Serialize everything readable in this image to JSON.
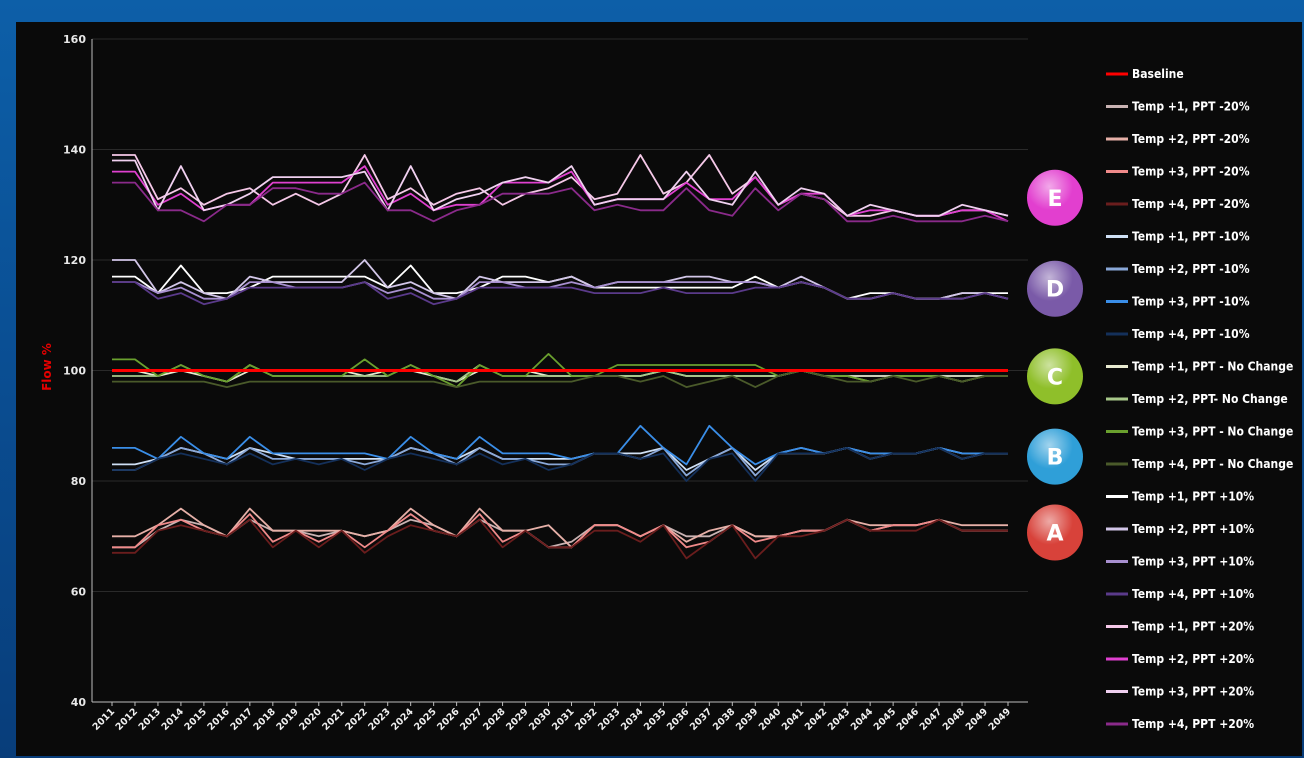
{
  "chart_data": {
    "type": "line",
    "title": "",
    "ylabel": "Flow %",
    "xlabel": "",
    "ylim": [
      40,
      160
    ],
    "yticks": [
      40,
      60,
      80,
      100,
      120,
      140,
      160
    ],
    "grid": "horizontal",
    "legend_position": "right",
    "x": [
      "2011",
      "2012",
      "2013",
      "2014",
      "2015",
      "2016",
      "2017",
      "2018",
      "2019",
      "2020",
      "2021",
      "2022",
      "2023",
      "2024",
      "2025",
      "2026",
      "2027",
      "2028",
      "2029",
      "2030",
      "2031",
      "2032",
      "2033",
      "2034",
      "2035",
      "2036",
      "2037",
      "2038",
      "2039",
      "2040",
      "2041",
      "2042",
      "2043",
      "2044",
      "2045",
      "2046",
      "2047",
      "2048",
      "2049",
      "2049"
    ],
    "groups": [
      {
        "label": "E",
        "color": "#e23fcf"
      },
      {
        "label": "D",
        "color": "#7a5aa8"
      },
      {
        "label": "C",
        "color": "#8fbf2a"
      },
      {
        "label": "B",
        "color": "#2f9fd8"
      },
      {
        "label": "A",
        "color": "#d8423a"
      }
    ],
    "series": [
      {
        "name": "Baseline",
        "color": "#ff0000",
        "group": "",
        "values": [
          100,
          100,
          100,
          100,
          100,
          100,
          100,
          100,
          100,
          100,
          100,
          100,
          100,
          100,
          100,
          100,
          100,
          100,
          100,
          100,
          100,
          100,
          100,
          100,
          100,
          100,
          100,
          100,
          100,
          100,
          100,
          100,
          100,
          100,
          100,
          100,
          100,
          100,
          100,
          100
        ]
      },
      {
        "name": "Temp +1, PPT -20%",
        "color": "#c9b3b3",
        "group": "A",
        "values": [
          68,
          68,
          71,
          73,
          72,
          70,
          73,
          71,
          71,
          70,
          71,
          70,
          71,
          73,
          72,
          70,
          73,
          71,
          71,
          68,
          69,
          72,
          72,
          70,
          72,
          70,
          70,
          72,
          70,
          70,
          71,
          71,
          73,
          71,
          72,
          72,
          73,
          71,
          71,
          71
        ]
      },
      {
        "name": "Temp +2, PPT -20%",
        "color": "#e6b0a8",
        "group": "A",
        "values": [
          70,
          70,
          72,
          75,
          72,
          70,
          75,
          71,
          71,
          71,
          71,
          70,
          71,
          75,
          72,
          70,
          75,
          71,
          71,
          72,
          68,
          72,
          72,
          70,
          72,
          69,
          71,
          72,
          70,
          70,
          71,
          71,
          73,
          72,
          72,
          72,
          73,
          72,
          72,
          72
        ]
      },
      {
        "name": "Temp +3, PPT -20%",
        "color": "#f08a8a",
        "group": "A",
        "values": [
          68,
          68,
          72,
          73,
          71,
          70,
          74,
          69,
          71,
          69,
          71,
          68,
          71,
          74,
          71,
          70,
          74,
          69,
          71,
          68,
          68,
          72,
          72,
          70,
          72,
          68,
          69,
          72,
          69,
          70,
          71,
          71,
          73,
          71,
          72,
          72,
          73,
          71,
          71,
          71
        ]
      },
      {
        "name": "Temp +4, PPT -20%",
        "color": "#6a1d1d",
        "group": "A",
        "values": [
          67,
          67,
          71,
          72,
          71,
          70,
          73,
          68,
          71,
          68,
          71,
          67,
          70,
          72,
          71,
          70,
          73,
          68,
          71,
          68,
          68,
          71,
          71,
          69,
          72,
          66,
          69,
          72,
          66,
          70,
          70,
          71,
          73,
          71,
          71,
          71,
          73,
          71,
          71,
          71
        ]
      },
      {
        "name": "Temp +1, PPT -10%",
        "color": "#cfe0f5",
        "group": "B",
        "values": [
          83,
          83,
          84,
          86,
          85,
          84,
          86,
          85,
          84,
          84,
          84,
          84,
          84,
          86,
          85,
          84,
          86,
          84,
          84,
          84,
          84,
          85,
          85,
          85,
          86,
          82,
          84,
          86,
          82,
          85,
          85,
          85,
          86,
          85,
          85,
          85,
          86,
          85,
          85,
          85
        ]
      },
      {
        "name": "Temp +2, PPT -10%",
        "color": "#8aa8d8",
        "group": "B",
        "values": [
          82,
          82,
          84,
          86,
          85,
          83,
          86,
          84,
          84,
          84,
          84,
          83,
          84,
          86,
          85,
          83,
          86,
          84,
          84,
          83,
          83,
          85,
          85,
          84,
          86,
          81,
          84,
          86,
          81,
          85,
          86,
          85,
          86,
          84,
          85,
          85,
          86,
          84,
          85,
          85
        ]
      },
      {
        "name": "Temp +3, PPT -10%",
        "color": "#3a8ee8",
        "group": "B",
        "values": [
          86,
          86,
          84,
          88,
          85,
          84,
          88,
          85,
          85,
          85,
          85,
          85,
          84,
          88,
          85,
          84,
          88,
          85,
          85,
          85,
          84,
          85,
          85,
          90,
          86,
          83,
          90,
          86,
          83,
          85,
          86,
          85,
          86,
          85,
          85,
          85,
          86,
          85,
          85,
          85
        ]
      },
      {
        "name": "Temp +4, PPT -10%",
        "color": "#14305a",
        "group": "B",
        "values": [
          82,
          82,
          84,
          85,
          84,
          83,
          85,
          83,
          84,
          83,
          84,
          82,
          84,
          85,
          84,
          83,
          85,
          83,
          84,
          82,
          83,
          85,
          85,
          84,
          85,
          80,
          84,
          85,
          80,
          85,
          85,
          85,
          86,
          84,
          85,
          85,
          86,
          84,
          85,
          85
        ]
      },
      {
        "name": "Temp +1, PPT - No Change",
        "color": "#e8ead0",
        "group": "C",
        "values": [
          100,
          100,
          99,
          100,
          99,
          98,
          100,
          100,
          100,
          100,
          100,
          99,
          100,
          100,
          99,
          98,
          100,
          100,
          100,
          99,
          99,
          99,
          99,
          99,
          100,
          99,
          99,
          99,
          99,
          99,
          100,
          99,
          99,
          99,
          99,
          99,
          99,
          99,
          99,
          99
        ]
      },
      {
        "name": "Temp +2, PPT- No Change",
        "color": "#a8c88a",
        "group": "C",
        "values": [
          99,
          99,
          99,
          101,
          99,
          98,
          101,
          99,
          99,
          99,
          99,
          99,
          99,
          101,
          99,
          98,
          101,
          99,
          99,
          99,
          99,
          99,
          99,
          99,
          100,
          99,
          99,
          99,
          99,
          99,
          100,
          99,
          99,
          98,
          99,
          99,
          99,
          98,
          99,
          99
        ]
      },
      {
        "name": "Temp +3, PPT - No Change",
        "color": "#6aa02e",
        "group": "C",
        "values": [
          102,
          102,
          99,
          101,
          99,
          98,
          101,
          99,
          99,
          99,
          99,
          102,
          99,
          101,
          99,
          97,
          101,
          99,
          99,
          103,
          99,
          99,
          101,
          101,
          101,
          101,
          101,
          101,
          101,
          99,
          100,
          99,
          99,
          98,
          99,
          99,
          99,
          98,
          99,
          99
        ]
      },
      {
        "name": "Temp +4, PPT - No Change",
        "color": "#4a5a2a",
        "group": "C",
        "values": [
          98,
          98,
          98,
          98,
          98,
          97,
          98,
          98,
          98,
          98,
          98,
          98,
          98,
          98,
          98,
          97,
          98,
          98,
          98,
          98,
          98,
          99,
          99,
          98,
          99,
          97,
          98,
          99,
          97,
          99,
          100,
          99,
          98,
          98,
          99,
          98,
          99,
          98,
          99,
          99
        ]
      },
      {
        "name": "Temp +1, PPT +10%",
        "color": "#ffffff",
        "group": "D",
        "values": [
          117,
          117,
          114,
          119,
          114,
          114,
          115,
          117,
          117,
          117,
          117,
          117,
          115,
          119,
          114,
          114,
          115,
          117,
          117,
          116,
          117,
          115,
          115,
          115,
          115,
          115,
          115,
          115,
          117,
          115,
          116,
          115,
          113,
          114,
          114,
          113,
          113,
          114,
          114,
          114
        ]
      },
      {
        "name": "Temp +2, PPT +10%",
        "color": "#d2c6e8",
        "group": "D",
        "values": [
          120,
          120,
          114,
          116,
          114,
          113,
          117,
          116,
          116,
          116,
          116,
          120,
          115,
          116,
          114,
          113,
          117,
          116,
          116,
          116,
          117,
          115,
          116,
          116,
          116,
          117,
          117,
          116,
          116,
          115,
          117,
          115,
          113,
          113,
          114,
          113,
          113,
          114,
          114,
          113
        ]
      },
      {
        "name": "Temp +3, PPT +10%",
        "color": "#a890d0",
        "group": "D",
        "values": [
          116,
          116,
          114,
          115,
          113,
          113,
          116,
          116,
          115,
          115,
          115,
          116,
          114,
          115,
          113,
          113,
          116,
          116,
          115,
          115,
          116,
          115,
          116,
          116,
          116,
          116,
          116,
          116,
          116,
          115,
          116,
          115,
          113,
          113,
          114,
          113,
          113,
          113,
          114,
          113
        ]
      },
      {
        "name": "Temp +4, PPT +10%",
        "color": "#5a3a8a",
        "group": "D",
        "values": [
          116,
          116,
          113,
          114,
          112,
          113,
          115,
          115,
          115,
          115,
          115,
          116,
          113,
          114,
          112,
          113,
          115,
          115,
          115,
          115,
          115,
          114,
          114,
          114,
          115,
          114,
          114,
          114,
          115,
          115,
          116,
          115,
          113,
          113,
          114,
          113,
          113,
          113,
          114,
          113
        ]
      },
      {
        "name": "Temp +1, PPT +20%",
        "color": "#f5c8e8",
        "group": "E",
        "values": [
          139,
          139,
          131,
          133,
          130,
          132,
          133,
          130,
          132,
          130,
          132,
          139,
          131,
          133,
          130,
          132,
          133,
          130,
          132,
          133,
          135,
          131,
          132,
          139,
          132,
          134,
          139,
          132,
          135,
          130,
          132,
          131,
          128,
          128,
          129,
          128,
          128,
          129,
          129,
          128
        ]
      },
      {
        "name": "Temp +2, PPT +20%",
        "color": "#e040d0",
        "group": "E",
        "values": [
          136,
          136,
          130,
          132,
          129,
          130,
          130,
          134,
          134,
          134,
          134,
          137,
          130,
          132,
          129,
          130,
          130,
          134,
          134,
          134,
          136,
          130,
          131,
          131,
          131,
          134,
          131,
          131,
          135,
          130,
          132,
          132,
          128,
          129,
          129,
          128,
          128,
          129,
          129,
          127
        ]
      },
      {
        "name": "Temp +3, PPT +20%",
        "color": "#f0d0f0",
        "group": "E",
        "values": [
          138,
          138,
          129,
          137,
          129,
          130,
          132,
          135,
          135,
          135,
          135,
          136,
          129,
          137,
          129,
          131,
          132,
          134,
          135,
          134,
          137,
          130,
          131,
          131,
          131,
          136,
          131,
          130,
          136,
          130,
          133,
          132,
          128,
          130,
          129,
          128,
          128,
          130,
          129,
          128
        ]
      },
      {
        "name": "Temp +4, PPT +20%",
        "color": "#8a2a8a",
        "group": "E",
        "values": [
          134,
          134,
          129,
          129,
          127,
          130,
          130,
          133,
          133,
          132,
          132,
          134,
          129,
          129,
          127,
          129,
          130,
          132,
          132,
          132,
          133,
          129,
          130,
          129,
          129,
          133,
          129,
          128,
          133,
          129,
          132,
          131,
          127,
          127,
          128,
          127,
          127,
          127,
          128,
          127
        ]
      }
    ]
  }
}
